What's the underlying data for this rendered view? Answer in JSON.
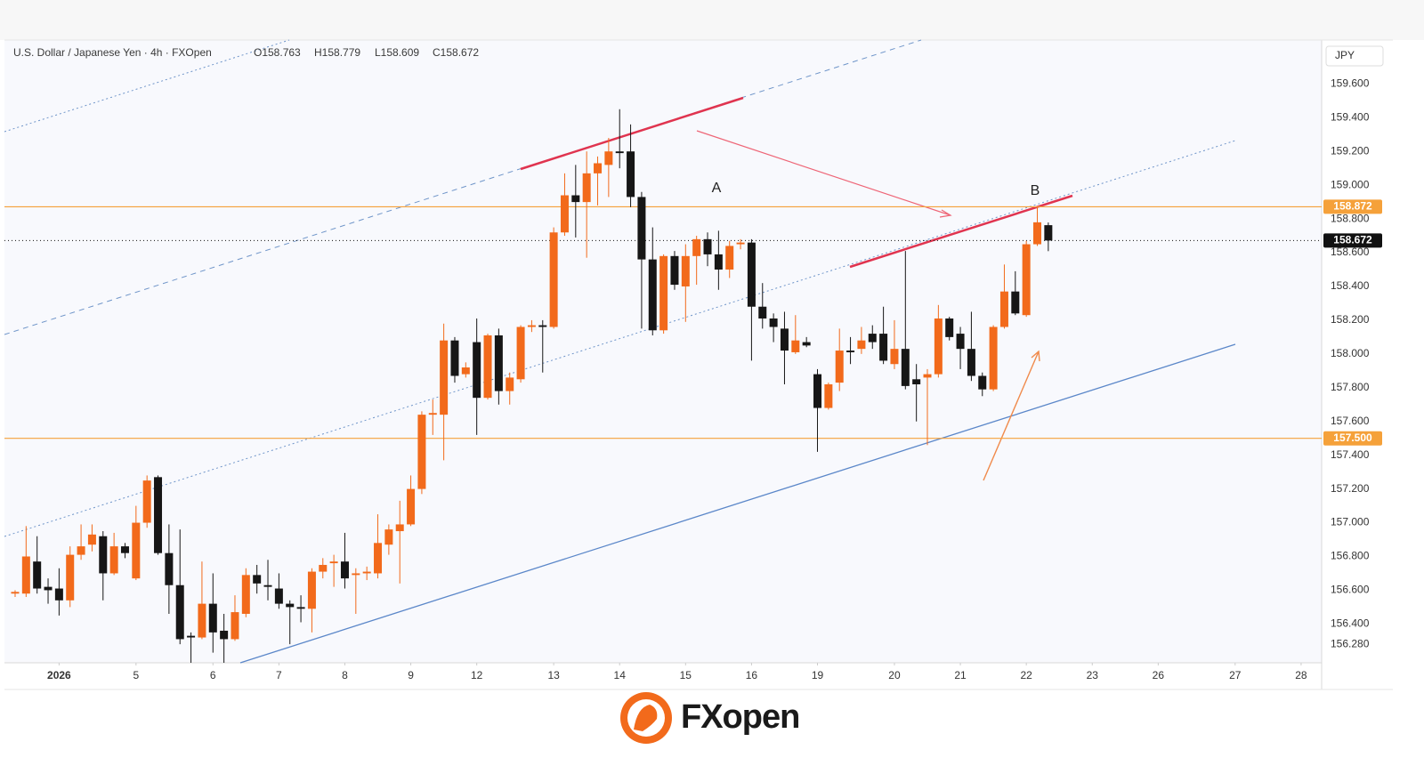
{
  "chart_data": {
    "type": "candlestick",
    "title": "U.S. Dollar / Japanese Yen · 4h · FXOpen",
    "ohlc_legend": [
      "O158.763",
      "H158.779",
      "L158.609",
      "C158.672"
    ],
    "y_unit": "JPY",
    "up_color": "#f26a1b",
    "down_color": "#161616",
    "grid": false,
    "open": [
      156.58,
      156.58,
      156.77,
      156.62,
      156.61,
      156.54,
      156.81,
      156.87,
      156.92,
      156.7,
      156.86,
      156.67,
      157.0,
      157.27,
      156.82,
      156.63,
      156.33,
      156.32,
      156.52,
      156.36,
      156.31,
      156.46,
      156.69,
      156.63,
      156.61,
      156.52,
      156.5,
      156.49,
      156.71,
      156.76,
      156.77,
      156.69,
      156.7,
      156.7,
      156.87,
      156.95,
      156.99,
      157.2,
      157.64,
      157.64,
      158.08,
      157.88,
      158.07,
      157.74,
      158.11,
      157.78,
      157.85,
      158.16,
      158.17,
      158.16,
      158.72,
      158.94,
      158.9,
      159.07,
      159.12,
      159.2,
      159.2,
      158.93,
      158.56,
      158.14,
      158.58,
      158.4,
      158.58,
      158.68,
      158.59,
      158.5,
      158.65,
      158.66,
      158.28,
      158.21,
      158.15,
      158.01,
      158.07,
      157.88,
      157.68,
      157.83,
      158.02,
      158.03,
      158.12,
      158.12,
      157.94,
      158.03,
      157.85,
      157.86,
      157.88,
      158.21,
      158.12,
      158.03,
      157.87,
      157.79,
      158.16,
      158.37,
      158.23,
      158.65,
      158.763
    ],
    "high": [
      156.6,
      156.98,
      156.92,
      156.67,
      156.73,
      156.86,
      156.99,
      156.99,
      156.95,
      156.94,
      156.88,
      157.1,
      157.28,
      157.28,
      156.99,
      156.96,
      156.35,
      156.77,
      156.7,
      156.46,
      156.57,
      156.73,
      156.75,
      156.78,
      156.7,
      156.54,
      156.57,
      156.73,
      156.79,
      156.81,
      156.94,
      156.73,
      156.74,
      157.05,
      156.99,
      157.13,
      157.28,
      157.66,
      157.73,
      158.18,
      158.1,
      157.95,
      158.21,
      158.12,
      158.15,
      157.89,
      158.17,
      158.2,
      158.2,
      158.75,
      159.07,
      159.12,
      159.2,
      159.17,
      159.28,
      159.45,
      159.36,
      158.96,
      158.75,
      158.59,
      158.61,
      158.65,
      158.7,
      158.72,
      158.73,
      158.67,
      158.68,
      158.68,
      158.42,
      158.24,
      158.25,
      158.23,
      158.1,
      157.91,
      157.83,
      158.15,
      158.1,
      158.16,
      158.17,
      158.28,
      158.2,
      158.61,
      157.94,
      157.91,
      158.29,
      158.22,
      158.16,
      158.25,
      157.89,
      158.17,
      158.53,
      158.49,
      158.67,
      158.872,
      158.779
    ],
    "low": [
      156.56,
      156.56,
      156.58,
      156.52,
      156.45,
      156.5,
      156.78,
      156.83,
      156.54,
      156.69,
      156.79,
      156.66,
      156.97,
      156.81,
      156.46,
      156.28,
      156.17,
      156.31,
      156.23,
      156.17,
      156.3,
      156.44,
      156.58,
      156.54,
      156.49,
      156.28,
      156.41,
      156.35,
      156.67,
      156.62,
      156.61,
      156.46,
      156.66,
      156.67,
      156.81,
      156.64,
      156.98,
      157.17,
      157.52,
      157.37,
      157.83,
      157.86,
      157.52,
      157.73,
      157.7,
      157.7,
      157.83,
      158.13,
      157.89,
      158.15,
      158.7,
      158.69,
      158.57,
      158.88,
      158.93,
      159.1,
      158.87,
      158.15,
      158.11,
      158.12,
      158.38,
      158.19,
      158.41,
      158.52,
      158.38,
      158.45,
      158.62,
      157.96,
      158.15,
      158.07,
      157.82,
      158.0,
      158.04,
      157.42,
      157.67,
      157.78,
      157.94,
      158.0,
      158.03,
      157.94,
      157.91,
      157.79,
      157.6,
      157.46,
      157.86,
      158.08,
      157.91,
      157.84,
      157.75,
      157.78,
      158.15,
      158.23,
      158.22,
      158.64,
      158.609
    ],
    "close": [
      156.59,
      156.8,
      156.61,
      156.6,
      156.54,
      156.81,
      156.86,
      156.93,
      156.7,
      156.86,
      156.82,
      157.0,
      157.25,
      156.82,
      156.63,
      156.31,
      156.32,
      156.52,
      156.35,
      156.31,
      156.47,
      156.69,
      156.64,
      156.62,
      156.52,
      156.5,
      156.49,
      156.71,
      156.75,
      156.77,
      156.67,
      156.7,
      156.71,
      156.88,
      156.96,
      156.99,
      157.2,
      157.64,
      157.65,
      158.08,
      157.87,
      157.92,
      157.74,
      158.11,
      157.78,
      157.86,
      158.16,
      158.17,
      158.16,
      158.72,
      158.94,
      158.9,
      159.07,
      159.13,
      159.2,
      159.19,
      158.93,
      158.56,
      158.14,
      158.58,
      158.41,
      158.58,
      158.68,
      158.59,
      158.5,
      158.64,
      158.66,
      158.28,
      158.21,
      158.16,
      158.02,
      158.08,
      158.05,
      157.68,
      157.82,
      158.02,
      158.01,
      158.08,
      158.07,
      157.96,
      158.03,
      157.81,
      157.82,
      157.88,
      158.21,
      158.1,
      158.03,
      157.87,
      157.79,
      158.16,
      158.37,
      158.24,
      158.65,
      158.78,
      158.672
    ],
    "xlim": [
      -0.97,
      118.87
    ],
    "xticks": [
      {
        "value": 4,
        "label": "2026"
      },
      {
        "value": 11,
        "label": "5"
      },
      {
        "value": 18,
        "label": "6"
      },
      {
        "value": 24,
        "label": "7"
      },
      {
        "value": 30,
        "label": "8"
      },
      {
        "value": 36,
        "label": "9"
      },
      {
        "value": 42,
        "label": "12"
      },
      {
        "value": 49,
        "label": "13"
      },
      {
        "value": 55,
        "label": "14"
      },
      {
        "value": 61,
        "label": "15"
      },
      {
        "value": 67,
        "label": "16"
      },
      {
        "value": 73,
        "label": "19"
      },
      {
        "value": 80,
        "label": "20"
      },
      {
        "value": 86,
        "label": "21"
      },
      {
        "value": 92,
        "label": "22"
      },
      {
        "value": 98,
        "label": "23"
      },
      {
        "value": 104,
        "label": "26"
      },
      {
        "value": 111,
        "label": "27"
      },
      {
        "value": 117,
        "label": "28"
      }
    ],
    "ylim": [
      156.17,
      159.86
    ],
    "yticks": [
      {
        "value": 156.28,
        "label": "156.280"
      },
      {
        "value": 156.4,
        "label": "156.400"
      },
      {
        "value": 156.6,
        "label": "156.600"
      },
      {
        "value": 156.8,
        "label": "156.800"
      },
      {
        "value": 157.0,
        "label": "157.000"
      },
      {
        "value": 157.2,
        "label": "157.200"
      },
      {
        "value": 157.4,
        "label": "157.400"
      },
      {
        "value": 157.6,
        "label": "157.600"
      },
      {
        "value": 157.8,
        "label": "157.800"
      },
      {
        "value": 158.0,
        "label": "158.000"
      },
      {
        "value": 158.2,
        "label": "158.200"
      },
      {
        "value": 158.4,
        "label": "158.400"
      },
      {
        "value": 158.6,
        "label": "158.600"
      },
      {
        "value": 158.8,
        "label": "158.800"
      },
      {
        "value": 159.0,
        "label": "159.000"
      },
      {
        "value": 159.2,
        "label": "159.200"
      },
      {
        "value": 159.4,
        "label": "159.400"
      },
      {
        "value": 159.6,
        "label": "159.600"
      }
    ],
    "horizontal_lines": [
      {
        "value": 158.872,
        "label": "158.872",
        "color": "#f5a13a"
      },
      {
        "value": 157.5,
        "label": "157.500",
        "color": "#f5a13a"
      }
    ],
    "last_price": {
      "value": 158.672,
      "label": "158.672",
      "color": "#111111"
    },
    "annotations": [
      "A",
      "B"
    ]
  },
  "logo": "FXopen"
}
